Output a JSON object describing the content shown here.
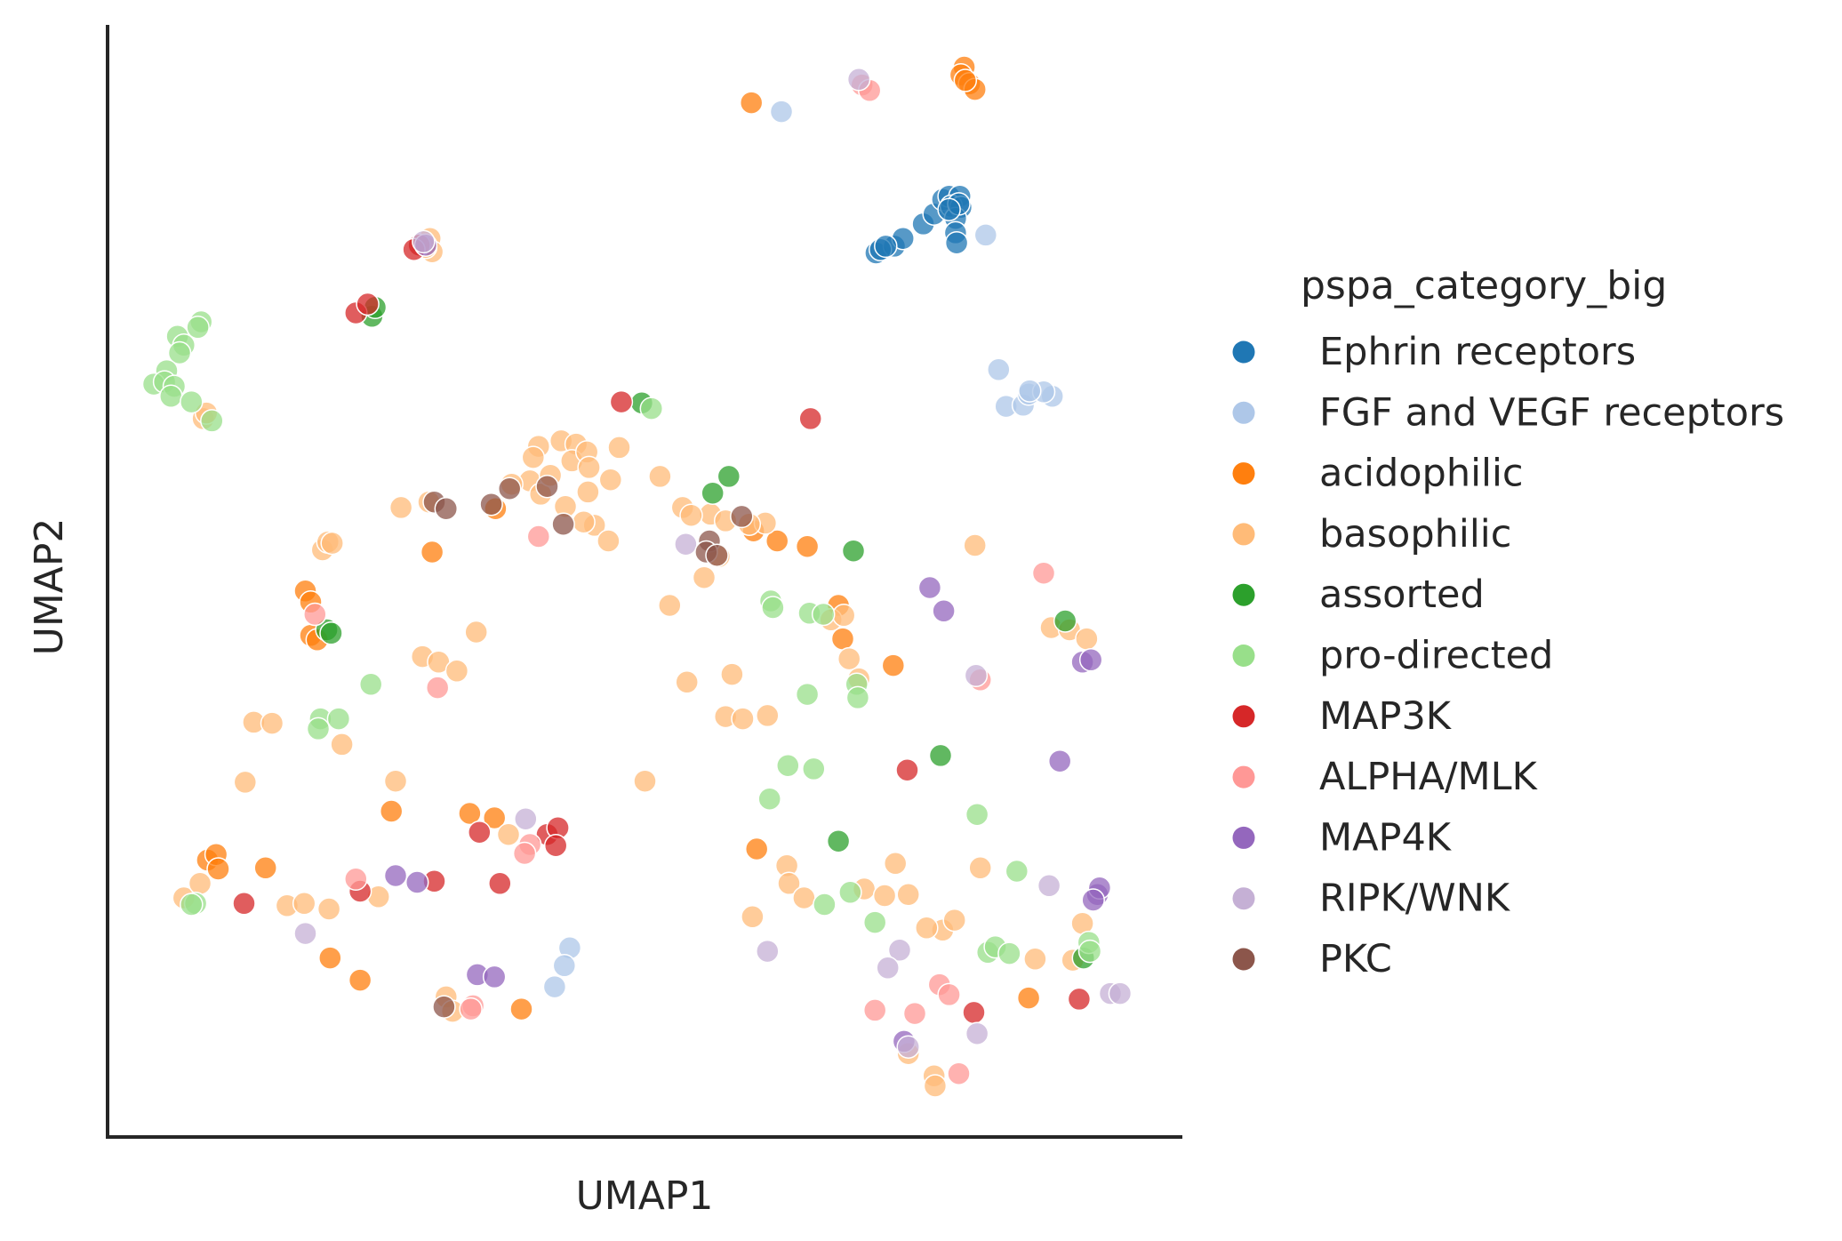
{
  "chart_data": {
    "type": "scatter",
    "title": "",
    "xlabel": "UMAP1",
    "ylabel": "UMAP2",
    "xlim": [
      0,
      100
    ],
    "ylim": [
      0,
      100
    ],
    "x_ticks_shown": false,
    "y_ticks_shown": false,
    "grid": false,
    "marker_opacity": 0.75,
    "legend": {
      "title": "pspa_category_big",
      "placement": "right"
    },
    "series": [
      {
        "name": "Ephrin receptors",
        "color": "#1f77b4",
        "points": [
          [
            71.5,
            79.5
          ],
          [
            73.2,
            80.1
          ],
          [
            74.0,
            80.8
          ],
          [
            75.9,
            82.1
          ],
          [
            76.9,
            83.0
          ],
          [
            77.7,
            84.3
          ],
          [
            78.3,
            84.6
          ],
          [
            79.3,
            84.6
          ],
          [
            78.5,
            83.7
          ],
          [
            79.4,
            83.6
          ],
          [
            78.9,
            82.6
          ],
          [
            79.2,
            83.9
          ],
          [
            78.3,
            83.4
          ],
          [
            78.9,
            81.3
          ],
          [
            79.0,
            80.4
          ],
          [
            71.9,
            79.8
          ],
          [
            72.4,
            80.1
          ]
        ]
      },
      {
        "name": "FGF and VEGF receptors",
        "color": "#aec7e8",
        "points": [
          [
            62.7,
            92.2
          ],
          [
            81.7,
            81.1
          ],
          [
            82.9,
            69.0
          ],
          [
            83.6,
            65.7
          ],
          [
            85.2,
            65.8
          ],
          [
            85.7,
            66.8
          ],
          [
            87.9,
            66.6
          ],
          [
            87.1,
            67.0
          ],
          [
            85.8,
            67.1
          ],
          [
            43.0,
            17.0
          ],
          [
            42.5,
            15.4
          ],
          [
            41.6,
            13.5
          ]
        ]
      },
      {
        "name": "acidophilic",
        "color": "#ff7f0e",
        "points": [
          [
            79.7,
            96.2
          ],
          [
            79.4,
            95.5
          ],
          [
            80.2,
            94.7
          ],
          [
            80.7,
            94.2
          ],
          [
            79.8,
            95.0
          ],
          [
            36.1,
            56.5
          ],
          [
            30.2,
            52.6
          ],
          [
            60.1,
            54.5
          ],
          [
            62.3,
            53.6
          ],
          [
            65.1,
            53.1
          ],
          [
            68.0,
            47.8
          ],
          [
            68.4,
            44.8
          ],
          [
            73.1,
            42.4
          ],
          [
            18.4,
            49.1
          ],
          [
            18.9,
            48.1
          ],
          [
            18.9,
            45.1
          ],
          [
            19.5,
            44.7
          ],
          [
            9.3,
            24.9
          ],
          [
            10.1,
            25.4
          ],
          [
            10.3,
            24.1
          ],
          [
            14.7,
            24.2
          ],
          [
            26.4,
            29.3
          ],
          [
            33.7,
            29.1
          ],
          [
            36.0,
            28.7
          ],
          [
            60.4,
            25.9
          ],
          [
            20.7,
            16.1
          ],
          [
            23.5,
            14.1
          ],
          [
            38.5,
            11.5
          ],
          [
            85.7,
            12.5
          ],
          [
            59.9,
            93.0
          ]
        ]
      },
      {
        "name": "basophilic",
        "color": "#ffbb78",
        "points": [
          [
            30.0,
            80.8
          ],
          [
            30.2,
            79.6
          ],
          [
            29.6,
            80.0
          ],
          [
            8.9,
            64.6
          ],
          [
            9.2,
            65.1
          ],
          [
            40.1,
            62.1
          ],
          [
            39.6,
            61.1
          ],
          [
            42.2,
            62.6
          ],
          [
            43.6,
            62.3
          ],
          [
            43.2,
            60.8
          ],
          [
            44.6,
            61.6
          ],
          [
            47.6,
            62.0
          ],
          [
            44.8,
            60.2
          ],
          [
            46.8,
            59.1
          ],
          [
            39.3,
            59.0
          ],
          [
            37.6,
            58.7
          ],
          [
            40.3,
            57.8
          ],
          [
            41.2,
            59.5
          ],
          [
            44.7,
            58.0
          ],
          [
            42.6,
            56.7
          ],
          [
            45.3,
            55.0
          ],
          [
            46.6,
            53.6
          ],
          [
            44.3,
            55.3
          ],
          [
            29.9,
            57.1
          ],
          [
            27.3,
            56.6
          ],
          [
            20.0,
            52.8
          ],
          [
            20.5,
            53.5
          ],
          [
            20.9,
            53.4
          ],
          [
            51.4,
            59.4
          ],
          [
            53.5,
            56.6
          ],
          [
            56.1,
            56.0
          ],
          [
            57.5,
            55.4
          ],
          [
            54.3,
            55.9
          ],
          [
            61.2,
            55.2
          ],
          [
            59.7,
            55.1
          ],
          [
            56.9,
            52.2
          ],
          [
            55.5,
            50.3
          ],
          [
            52.3,
            47.8
          ],
          [
            80.7,
            53.2
          ],
          [
            58.1,
            41.6
          ],
          [
            53.9,
            40.9
          ],
          [
            57.5,
            37.8
          ],
          [
            59.1,
            37.6
          ],
          [
            61.4,
            37.9
          ],
          [
            29.3,
            43.2
          ],
          [
            30.8,
            42.7
          ],
          [
            32.5,
            41.9
          ],
          [
            34.3,
            45.4
          ],
          [
            13.6,
            37.3
          ],
          [
            15.3,
            37.2
          ],
          [
            21.8,
            35.3
          ],
          [
            12.8,
            31.9
          ],
          [
            26.8,
            32.0
          ],
          [
            37.3,
            27.2
          ],
          [
            50.0,
            32.0
          ],
          [
            63.2,
            24.4
          ],
          [
            63.4,
            22.8
          ],
          [
            64.8,
            21.5
          ],
          [
            70.4,
            22.3
          ],
          [
            81.2,
            24.2
          ],
          [
            7.1,
            21.5
          ],
          [
            8.6,
            22.8
          ],
          [
            16.7,
            20.8
          ],
          [
            18.3,
            21.0
          ],
          [
            20.6,
            20.5
          ],
          [
            25.2,
            21.6
          ],
          [
            31.5,
            12.6
          ],
          [
            32.1,
            11.3
          ],
          [
            60.0,
            19.8
          ],
          [
            72.3,
            21.7
          ],
          [
            73.3,
            24.6
          ],
          [
            74.5,
            21.8
          ],
          [
            77.7,
            18.6
          ],
          [
            76.2,
            18.8
          ],
          [
            78.8,
            19.5
          ],
          [
            86.3,
            16.0
          ],
          [
            90.7,
            19.2
          ],
          [
            89.8,
            15.9
          ],
          [
            74.5,
            7.5
          ],
          [
            76.9,
            5.5
          ],
          [
            77.0,
            4.6
          ],
          [
            87.8,
            45.8
          ],
          [
            89.5,
            45.6
          ],
          [
            91.1,
            44.8
          ],
          [
            69.0,
            43.0
          ],
          [
            69.9,
            41.2
          ],
          [
            67.3,
            46.5
          ],
          [
            68.5,
            46.9
          ]
        ]
      },
      {
        "name": "assorted",
        "color": "#2ca02c",
        "points": [
          [
            24.6,
            73.8
          ],
          [
            24.9,
            74.6
          ],
          [
            49.7,
            66.0
          ],
          [
            56.3,
            57.9
          ],
          [
            57.8,
            59.4
          ],
          [
            69.4,
            52.7
          ],
          [
            20.4,
            45.6
          ],
          [
            20.8,
            45.3
          ],
          [
            89.1,
            46.4
          ],
          [
            77.5,
            34.3
          ],
          [
            68.0,
            26.6
          ],
          [
            90.8,
            16.1
          ]
        ]
      },
      {
        "name": "pro-directed",
        "color": "#98df8a",
        "points": [
          [
            8.7,
            73.3
          ],
          [
            8.4,
            72.8
          ],
          [
            6.5,
            72.0
          ],
          [
            7.1,
            71.2
          ],
          [
            6.7,
            70.5
          ],
          [
            5.5,
            68.9
          ],
          [
            4.3,
            67.7
          ],
          [
            5.3,
            67.9
          ],
          [
            6.2,
            67.5
          ],
          [
            5.9,
            66.6
          ],
          [
            7.8,
            66.1
          ],
          [
            9.7,
            64.4
          ],
          [
            50.6,
            65.5
          ],
          [
            61.7,
            48.2
          ],
          [
            61.9,
            47.6
          ],
          [
            65.3,
            47.1
          ],
          [
            66.6,
            47.0
          ],
          [
            69.7,
            40.7
          ],
          [
            69.8,
            39.5
          ],
          [
            65.1,
            39.8
          ],
          [
            24.5,
            40.7
          ],
          [
            19.8,
            37.6
          ],
          [
            19.6,
            36.7
          ],
          [
            21.5,
            37.6
          ],
          [
            63.3,
            33.4
          ],
          [
            65.7,
            33.1
          ],
          [
            61.6,
            30.4
          ],
          [
            80.9,
            29.0
          ],
          [
            84.6,
            23.9
          ],
          [
            69.1,
            22.0
          ],
          [
            66.7,
            20.9
          ],
          [
            71.4,
            19.3
          ],
          [
            81.9,
            16.6
          ],
          [
            82.6,
            17.1
          ],
          [
            83.9,
            16.5
          ],
          [
            91.3,
            17.5
          ],
          [
            91.4,
            16.7
          ],
          [
            8.2,
            21.0
          ],
          [
            7.8,
            20.9
          ]
        ]
      },
      {
        "name": "MAP3K",
        "color": "#d62728",
        "points": [
          [
            29.0,
            80.2
          ],
          [
            28.5,
            79.8
          ],
          [
            23.1,
            74.1
          ],
          [
            24.2,
            74.9
          ],
          [
            47.8,
            66.1
          ],
          [
            65.4,
            64.6
          ],
          [
            12.7,
            21.0
          ],
          [
            23.5,
            22.1
          ],
          [
            30.4,
            23.0
          ],
          [
            36.5,
            22.8
          ],
          [
            34.6,
            27.4
          ],
          [
            40.9,
            27.2
          ],
          [
            41.9,
            27.8
          ],
          [
            41.7,
            26.2
          ],
          [
            74.4,
            33.0
          ],
          [
            80.6,
            11.2
          ],
          [
            90.4,
            12.4
          ]
        ]
      },
      {
        "name": "ALPHA/MLK",
        "color": "#ff9896",
        "points": [
          [
            70.2,
            94.6
          ],
          [
            70.9,
            94.1
          ],
          [
            40.1,
            54.0
          ],
          [
            19.3,
            47.0
          ],
          [
            30.7,
            40.4
          ],
          [
            87.1,
            50.7
          ],
          [
            81.2,
            41.1
          ],
          [
            23.1,
            23.2
          ],
          [
            39.3,
            26.3
          ],
          [
            38.8,
            25.5
          ],
          [
            77.4,
            13.7
          ],
          [
            71.4,
            11.4
          ],
          [
            75.1,
            11.1
          ],
          [
            78.3,
            12.8
          ],
          [
            79.2,
            5.7
          ],
          [
            34.0,
            11.8
          ],
          [
            33.8,
            11.5
          ]
        ]
      },
      {
        "name": "MAP4K",
        "color": "#9467bd",
        "points": [
          [
            29.6,
            80.2
          ],
          [
            76.5,
            49.4
          ],
          [
            77.8,
            47.3
          ],
          [
            90.7,
            42.7
          ],
          [
            91.5,
            42.9
          ],
          [
            88.6,
            33.8
          ],
          [
            26.8,
            23.5
          ],
          [
            28.8,
            22.9
          ],
          [
            34.4,
            14.6
          ],
          [
            36.0,
            14.4
          ],
          [
            92.1,
            21.8
          ],
          [
            92.3,
            22.4
          ],
          [
            91.7,
            21.3
          ],
          [
            74.1,
            8.6
          ]
        ]
      },
      {
        "name": "RIPK/WNK",
        "color": "#c5b0d5",
        "points": [
          [
            69.9,
            95.1
          ],
          [
            29.4,
            80.5
          ],
          [
            53.8,
            53.3
          ],
          [
            80.8,
            41.5
          ],
          [
            38.9,
            28.6
          ],
          [
            18.4,
            18.3
          ],
          [
            61.4,
            16.7
          ],
          [
            73.7,
            16.8
          ],
          [
            72.6,
            15.2
          ],
          [
            87.6,
            22.6
          ],
          [
            80.9,
            9.3
          ],
          [
            74.5,
            8.1
          ],
          [
            93.3,
            12.9
          ],
          [
            94.2,
            12.9
          ]
        ]
      },
      {
        "name": "PKC",
        "color": "#8c564b",
        "points": [
          [
            30.4,
            57.1
          ],
          [
            31.5,
            56.5
          ],
          [
            35.7,
            56.9
          ],
          [
            37.4,
            58.3
          ],
          [
            40.9,
            58.5
          ],
          [
            42.4,
            55.1
          ],
          [
            56.0,
            53.6
          ],
          [
            55.7,
            52.6
          ],
          [
            56.7,
            52.3
          ],
          [
            59.0,
            55.8
          ],
          [
            31.3,
            11.7
          ]
        ]
      }
    ]
  }
}
